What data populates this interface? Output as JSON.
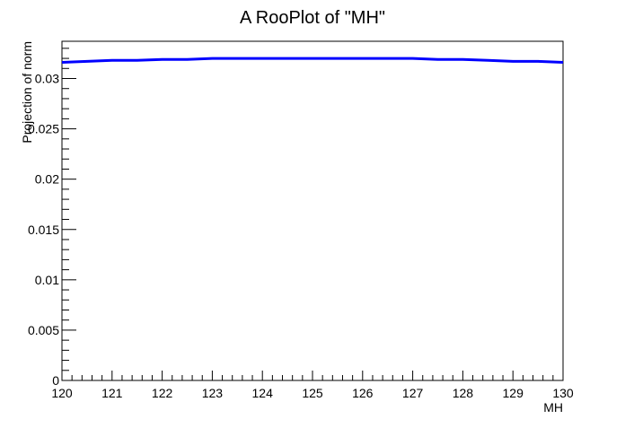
{
  "chart_data": {
    "type": "line",
    "title": "A RooPlot of \"MH\"",
    "xlabel": "MH",
    "ylabel": "Projection of norm",
    "xlim": [
      120,
      130
    ],
    "ylim": [
      0,
      0.0337
    ],
    "x_ticks": [
      "120",
      "121",
      "122",
      "123",
      "124",
      "125",
      "126",
      "127",
      "128",
      "129",
      "130"
    ],
    "y_ticks": [
      "0",
      "0.005",
      "0.01",
      "0.015",
      "0.02",
      "0.025",
      "0.03"
    ],
    "grid": false,
    "legend": "none",
    "series": [
      {
        "color": "#0000ff",
        "x": [
          120,
          120.5,
          121,
          121.5,
          122,
          122.5,
          123,
          123.5,
          124,
          124.5,
          125,
          125.5,
          126,
          126.5,
          127,
          127.5,
          128,
          128.5,
          129,
          129.5,
          130
        ],
        "y": [
          0.0316,
          0.0317,
          0.0318,
          0.0318,
          0.0319,
          0.0319,
          0.032,
          0.032,
          0.032,
          0.032,
          0.032,
          0.032,
          0.032,
          0.032,
          0.032,
          0.0319,
          0.0319,
          0.0318,
          0.0317,
          0.0317,
          0.0316
        ]
      }
    ]
  }
}
